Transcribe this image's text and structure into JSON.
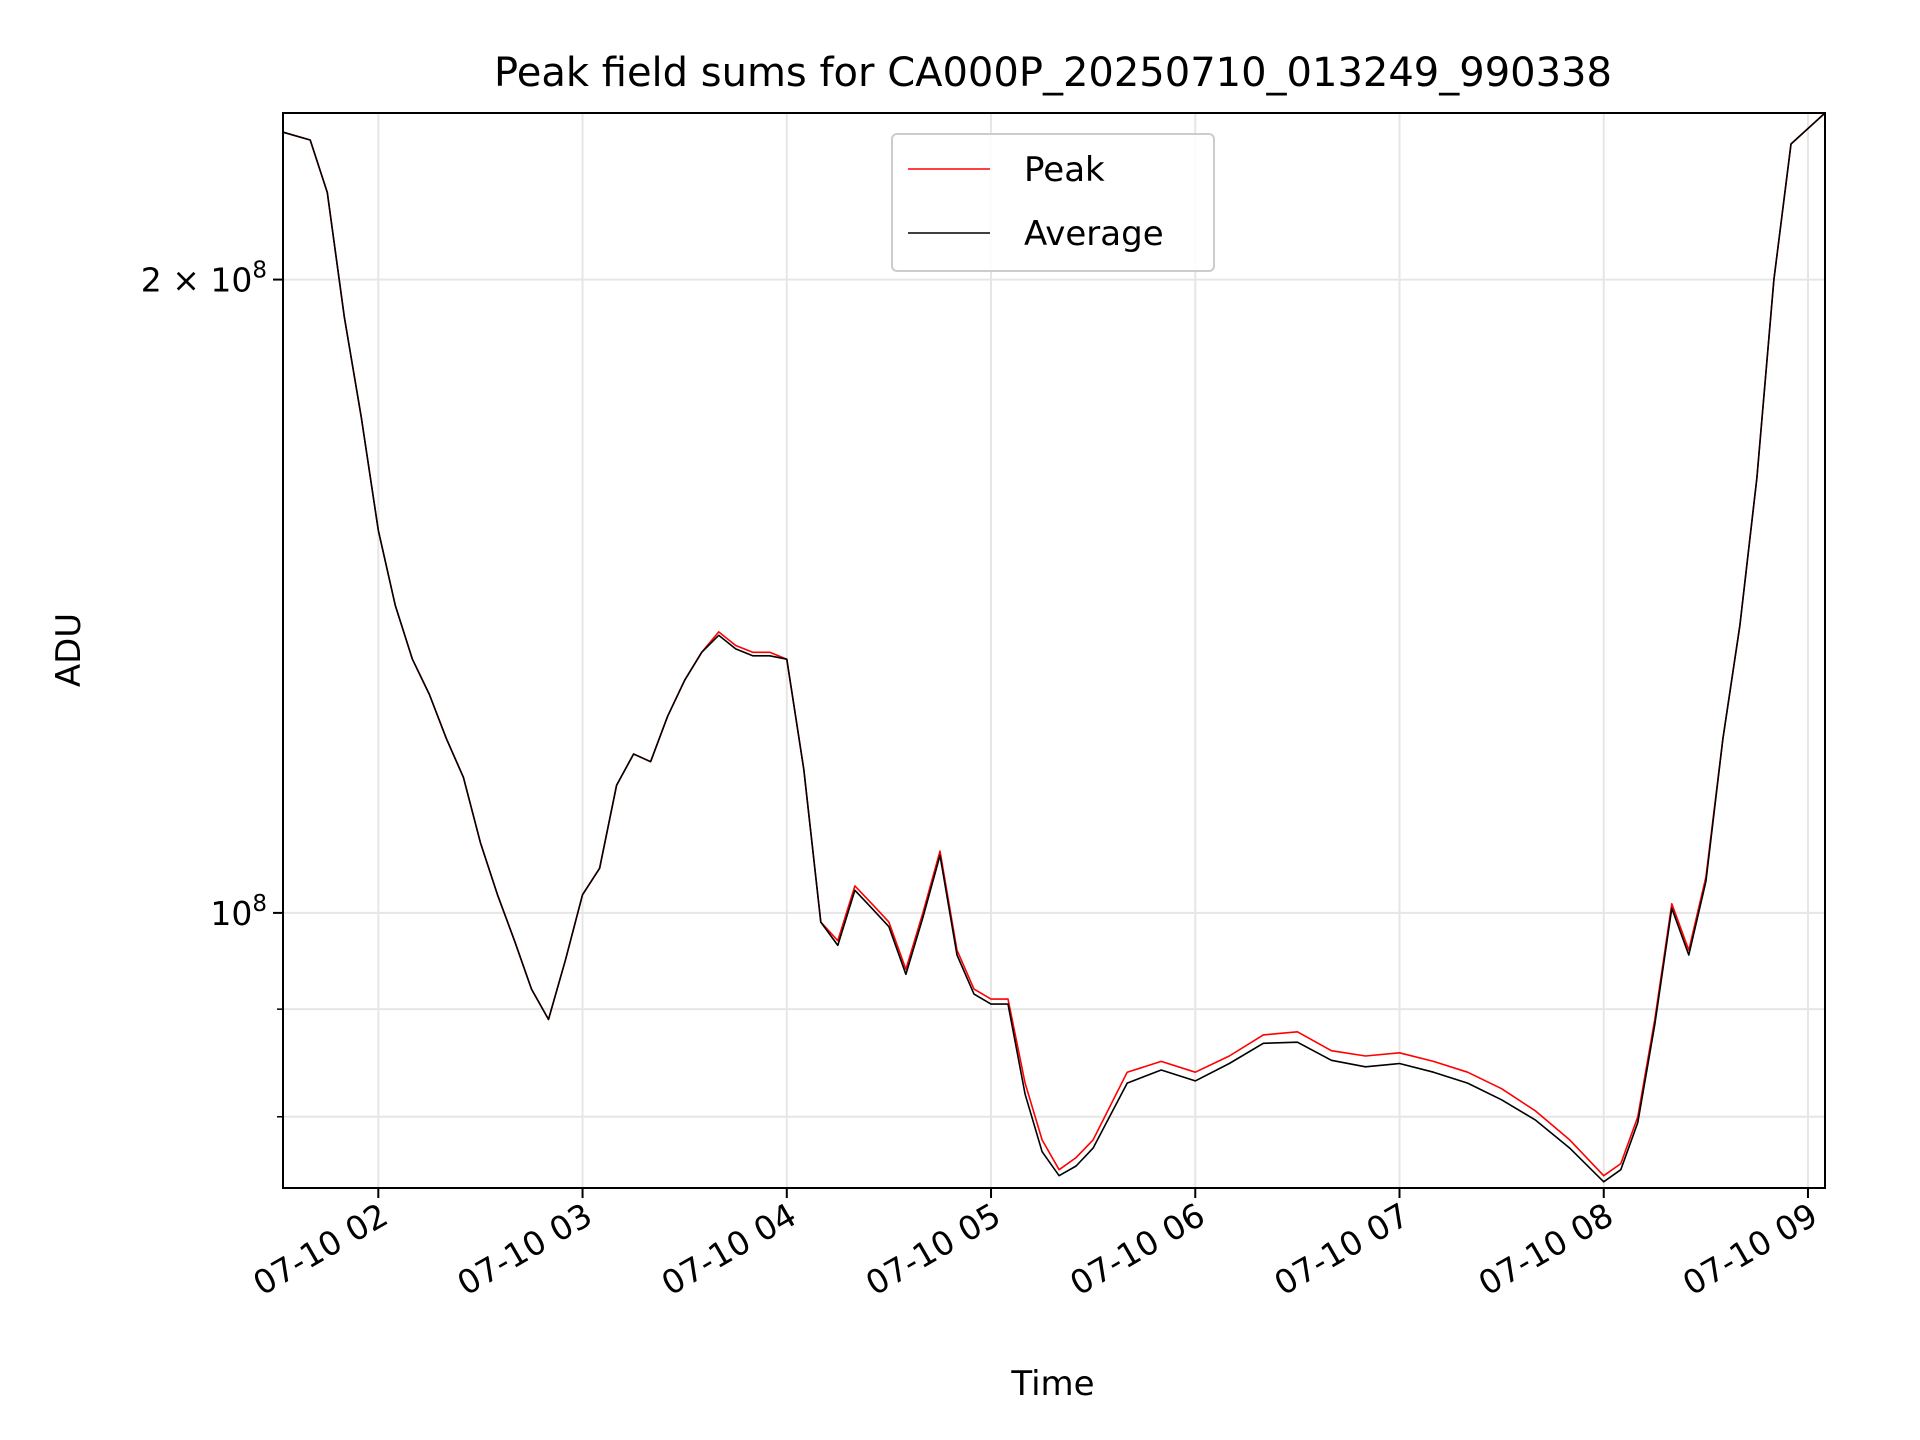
{
  "chart_data": {
    "type": "line",
    "title": "Peak field sums for CA000P_20250710_013249_990338",
    "xlabel": "Time",
    "ylabel": "ADU",
    "y_scale": "log",
    "ylim": [
      74000000,
      240000000
    ],
    "xlim": [
      "2025-07-10T01:32",
      "2025-07-10T09:05"
    ],
    "grid": true,
    "legend_position": "upper-center",
    "x_tick_labels": [
      "07-10 02",
      "07-10 03",
      "07-10 04",
      "07-10 05",
      "07-10 06",
      "07-10 07",
      "07-10 08",
      "07-10 09"
    ],
    "x_ticks": [
      "2025-07-10T02:00",
      "2025-07-10T03:00",
      "2025-07-10T04:00",
      "2025-07-10T05:00",
      "2025-07-10T06:00",
      "2025-07-10T07:00",
      "2025-07-10T08:00",
      "2025-07-10T09:00"
    ],
    "y_major_ticks": [
      {
        "value": 100000000,
        "base": "10",
        "exp": "8",
        "prefix": ""
      },
      {
        "value": 200000000,
        "base": "10",
        "exp": "8",
        "prefix": "2 × "
      }
    ],
    "y_minor_ticks": [
      80000000,
      90000000
    ],
    "x": [
      "2025-07-10T01:32",
      "2025-07-10T01:40",
      "2025-07-10T01:45",
      "2025-07-10T01:50",
      "2025-07-10T01:55",
      "2025-07-10T02:00",
      "2025-07-10T02:05",
      "2025-07-10T02:10",
      "2025-07-10T02:15",
      "2025-07-10T02:20",
      "2025-07-10T02:25",
      "2025-07-10T02:30",
      "2025-07-10T02:35",
      "2025-07-10T02:40",
      "2025-07-10T02:45",
      "2025-07-10T02:50",
      "2025-07-10T02:55",
      "2025-07-10T03:00",
      "2025-07-10T03:05",
      "2025-07-10T03:10",
      "2025-07-10T03:15",
      "2025-07-10T03:20",
      "2025-07-10T03:25",
      "2025-07-10T03:30",
      "2025-07-10T03:35",
      "2025-07-10T03:40",
      "2025-07-10T03:45",
      "2025-07-10T03:50",
      "2025-07-10T03:55",
      "2025-07-10T04:00",
      "2025-07-10T04:05",
      "2025-07-10T04:10",
      "2025-07-10T04:15",
      "2025-07-10T04:20",
      "2025-07-10T04:25",
      "2025-07-10T04:30",
      "2025-07-10T04:35",
      "2025-07-10T04:40",
      "2025-07-10T04:45",
      "2025-07-10T04:50",
      "2025-07-10T04:55",
      "2025-07-10T05:00",
      "2025-07-10T05:05",
      "2025-07-10T05:10",
      "2025-07-10T05:15",
      "2025-07-10T05:20",
      "2025-07-10T05:25",
      "2025-07-10T05:30",
      "2025-07-10T05:40",
      "2025-07-10T05:50",
      "2025-07-10T06:00",
      "2025-07-10T06:10",
      "2025-07-10T06:20",
      "2025-07-10T06:30",
      "2025-07-10T06:40",
      "2025-07-10T06:50",
      "2025-07-10T07:00",
      "2025-07-10T07:10",
      "2025-07-10T07:20",
      "2025-07-10T07:30",
      "2025-07-10T07:40",
      "2025-07-10T07:50",
      "2025-07-10T08:00",
      "2025-07-10T08:05",
      "2025-07-10T08:10",
      "2025-07-10T08:15",
      "2025-07-10T08:20",
      "2025-07-10T08:25",
      "2025-07-10T08:30",
      "2025-07-10T08:35",
      "2025-07-10T08:40",
      "2025-07-10T08:45",
      "2025-07-10T08:50",
      "2025-07-10T08:55",
      "2025-07-10T09:05"
    ],
    "series": [
      {
        "name": "Peak",
        "color": "#ff0000",
        "values": [
          235000000,
          233000000,
          220000000,
          192000000,
          172000000,
          152000000,
          140000000,
          132000000,
          127000000,
          121000000,
          116000000,
          108000000,
          102000000,
          97000000,
          92000000,
          89000000,
          95000000,
          102000000,
          105000000,
          115000000,
          119000000,
          118000000,
          124000000,
          129000000,
          133000000,
          136000000,
          134000000,
          133000000,
          133000000,
          132000000,
          117000000,
          99000000,
          97000000,
          103000000,
          101000000,
          99000000,
          94000000,
          100000000,
          107000000,
          96000000,
          92000000,
          91000000,
          91000000,
          83000000,
          78000000,
          75500000,
          76500000,
          78000000,
          84000000,
          85000000,
          84000000,
          85500000,
          87500000,
          87800000,
          86000000,
          85500000,
          85800000,
          85000000,
          84000000,
          82500000,
          80500000,
          78000000,
          75000000,
          76000000,
          80000000,
          89000000,
          101000000,
          96000000,
          104000000,
          121000000,
          137000000,
          161000000,
          200000000,
          232000000,
          240000000
        ]
      },
      {
        "name": "Average",
        "color": "#000000",
        "values": [
          235000000,
          233000000,
          220000000,
          192000000,
          172000000,
          152000000,
          140000000,
          132000000,
          127000000,
          121000000,
          116000000,
          108000000,
          102000000,
          97000000,
          92000000,
          89000000,
          95000000,
          102000000,
          105000000,
          115000000,
          119000000,
          118000000,
          124000000,
          129000000,
          133000000,
          135500000,
          133500000,
          132500000,
          132500000,
          132000000,
          117000000,
          99000000,
          96500000,
          102500000,
          100500000,
          98500000,
          93500000,
          99500000,
          106500000,
          95500000,
          91500000,
          90500000,
          90500000,
          82000000,
          77000000,
          75000000,
          75800000,
          77300000,
          83000000,
          84200000,
          83200000,
          84800000,
          86700000,
          86800000,
          85100000,
          84500000,
          84800000,
          84000000,
          83000000,
          81500000,
          79700000,
          77300000,
          74500000,
          75500000,
          79500000,
          88500000,
          100500000,
          95500000,
          103500000,
          121000000,
          137000000,
          161000000,
          200000000,
          232000000,
          240000000
        ]
      }
    ]
  }
}
